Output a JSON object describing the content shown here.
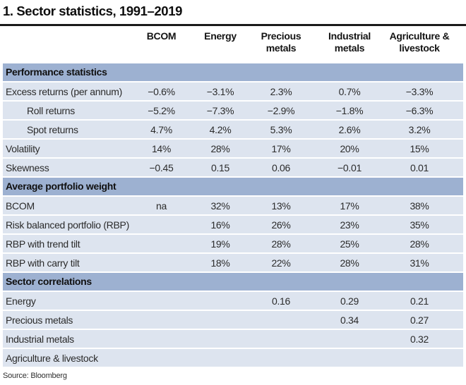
{
  "title": "1. Sector statistics, 1991–2019",
  "source": "Source: Bloomberg",
  "columns": [
    "BCOM",
    "Energy",
    "Precious metals",
    "Industrial metals",
    "Agriculture & livestock"
  ],
  "sections": [
    {
      "header": "Performance statistics",
      "rows": [
        {
          "label": "Excess returns (per annum)",
          "indent": false,
          "values": [
            "−0.6%",
            "−3.1%",
            "2.3%",
            "0.7%",
            "−3.3%"
          ]
        },
        {
          "label": "Roll returns",
          "indent": true,
          "values": [
            "−5.2%",
            "−7.3%",
            "−2.9%",
            "−1.8%",
            "−6.3%"
          ]
        },
        {
          "label": "Spot returns",
          "indent": true,
          "values": [
            "4.7%",
            "4.2%",
            "5.3%",
            "2.6%",
            "3.2%"
          ]
        },
        {
          "label": "Volatility",
          "indent": false,
          "values": [
            "14%",
            "28%",
            "17%",
            "20%",
            "15%"
          ]
        },
        {
          "label": "Skewness",
          "indent": false,
          "values": [
            "−0.45",
            "0.15",
            "0.06",
            "−0.01",
            "0.01"
          ]
        }
      ]
    },
    {
      "header": "Average portfolio weight",
      "rows": [
        {
          "label": "BCOM",
          "indent": false,
          "values": [
            "na",
            "32%",
            "13%",
            "17%",
            "38%"
          ]
        },
        {
          "label": "Risk balanced portfolio (RBP)",
          "indent": false,
          "values": [
            "",
            "16%",
            "26%",
            "23%",
            "35%"
          ]
        },
        {
          "label": "RBP with trend tilt",
          "indent": false,
          "values": [
            "",
            "19%",
            "28%",
            "25%",
            "28%"
          ]
        },
        {
          "label": "RBP with carry tilt",
          "indent": false,
          "values": [
            "",
            "18%",
            "22%",
            "28%",
            "31%"
          ]
        }
      ]
    },
    {
      "header": "Sector correlations",
      "rows": [
        {
          "label": "Energy",
          "indent": false,
          "values": [
            "",
            "",
            "0.16",
            "0.29",
            "0.21"
          ]
        },
        {
          "label": "Precious metals",
          "indent": false,
          "values": [
            "",
            "",
            "",
            "0.34",
            "0.27"
          ]
        },
        {
          "label": "Industrial metals",
          "indent": false,
          "values": [
            "",
            "",
            "",
            "",
            "0.32"
          ]
        },
        {
          "label": "Agriculture & livestock",
          "indent": false,
          "values": [
            "",
            "",
            "",
            "",
            ""
          ]
        }
      ]
    }
  ],
  "colors": {
    "section_header_bg": "#9db1d1",
    "row_bg": "#dde4ef",
    "rule": "#1a1a1a",
    "title_text": "#0e0e0e",
    "data_text": "#2b2b2b"
  },
  "chart_data": {
    "type": "table",
    "title": "1. Sector statistics, 1991–2019",
    "columns": [
      "BCOM",
      "Energy",
      "Precious metals",
      "Industrial metals",
      "Agriculture & livestock"
    ],
    "rows": [
      {
        "section": "Performance statistics",
        "label": "Excess returns (per annum)",
        "values": [
          -0.6,
          -3.1,
          2.3,
          0.7,
          -3.3
        ],
        "unit": "%"
      },
      {
        "section": "Performance statistics",
        "label": "Roll returns",
        "values": [
          -5.2,
          -7.3,
          -2.9,
          -1.8,
          -6.3
        ],
        "unit": "%"
      },
      {
        "section": "Performance statistics",
        "label": "Spot returns",
        "values": [
          4.7,
          4.2,
          5.3,
          2.6,
          3.2
        ],
        "unit": "%"
      },
      {
        "section": "Performance statistics",
        "label": "Volatility",
        "values": [
          14,
          28,
          17,
          20,
          15
        ],
        "unit": "%"
      },
      {
        "section": "Performance statistics",
        "label": "Skewness",
        "values": [
          -0.45,
          0.15,
          0.06,
          -0.01,
          0.01
        ],
        "unit": ""
      },
      {
        "section": "Average portfolio weight",
        "label": "BCOM",
        "values": [
          "na",
          32,
          13,
          17,
          38
        ],
        "unit": "%"
      },
      {
        "section": "Average portfolio weight",
        "label": "Risk balanced portfolio (RBP)",
        "values": [
          null,
          16,
          26,
          23,
          35
        ],
        "unit": "%"
      },
      {
        "section": "Average portfolio weight",
        "label": "RBP with trend tilt",
        "values": [
          null,
          19,
          28,
          25,
          28
        ],
        "unit": "%"
      },
      {
        "section": "Average portfolio weight",
        "label": "RBP with carry tilt",
        "values": [
          null,
          18,
          22,
          28,
          31
        ],
        "unit": "%"
      },
      {
        "section": "Sector correlations",
        "label": "Energy",
        "values": [
          null,
          null,
          0.16,
          0.29,
          0.21
        ],
        "unit": ""
      },
      {
        "section": "Sector correlations",
        "label": "Precious metals",
        "values": [
          null,
          null,
          null,
          0.34,
          0.27
        ],
        "unit": ""
      },
      {
        "section": "Sector correlations",
        "label": "Industrial metals",
        "values": [
          null,
          null,
          null,
          null,
          0.32
        ],
        "unit": ""
      },
      {
        "section": "Sector correlations",
        "label": "Agriculture & livestock",
        "values": [
          null,
          null,
          null,
          null,
          null
        ],
        "unit": ""
      }
    ],
    "source": "Source: Bloomberg"
  }
}
